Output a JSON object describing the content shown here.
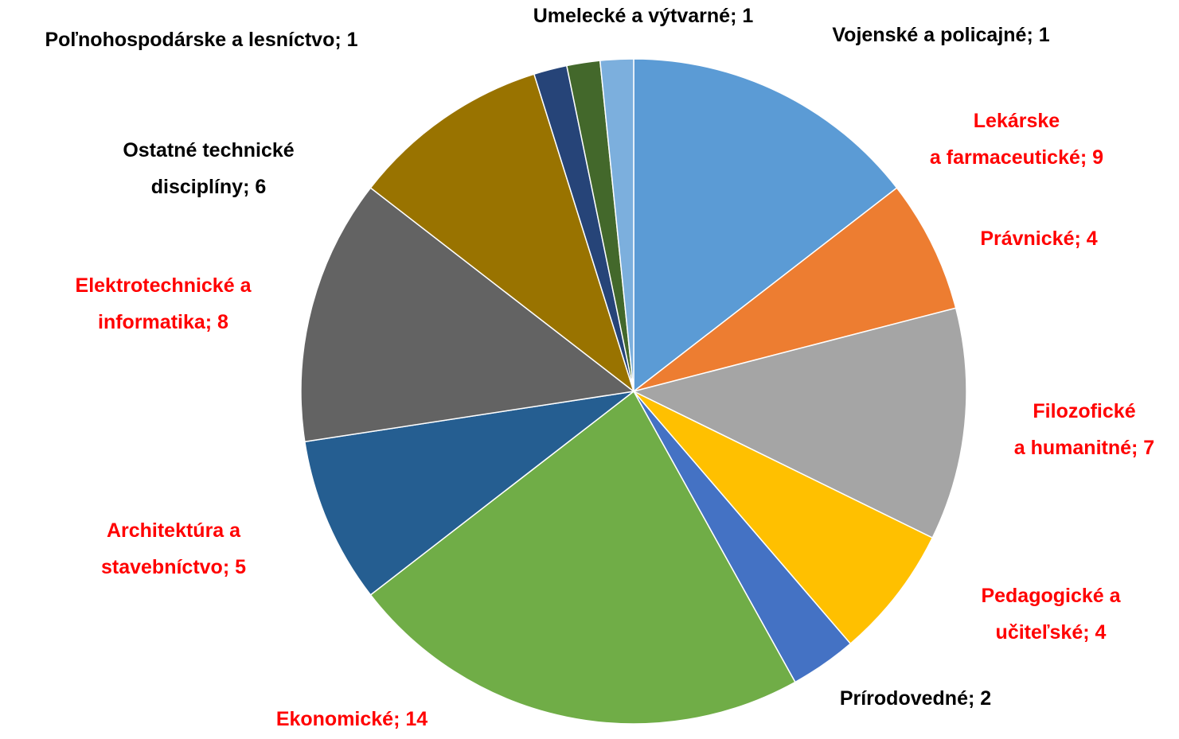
{
  "chart_data": {
    "type": "pie",
    "categories": [
      "Lekárske a farmaceutické",
      "Právnické",
      "Filozofické a humanitné",
      "Pedagogické a učiteľské",
      "Prírodovedné",
      "Ekonomické",
      "Architektúra a stavebníctvo",
      "Elektrotechnické a informatika",
      "Ostatné technické disciplíny",
      "Poľnohospodárske a lesníctvo",
      "Umelecké a výtvarné",
      "Vojenské a policajné"
    ],
    "values": [
      9,
      4,
      7,
      4,
      2,
      14,
      5,
      8,
      6,
      1,
      1,
      1
    ],
    "value_labels": [
      "; 9",
      "; 4",
      "; 7",
      "; 4",
      "; 2",
      "; 14",
      "; 5",
      "; 8",
      "; 6",
      "; 1",
      "; 1",
      "; 1"
    ],
    "colors": [
      "#5b9bd5",
      "#ed7d31",
      "#a5a5a5",
      "#ffc000",
      "#4472c4",
      "#70ad47",
      "#255e91",
      "#636363",
      "#997300",
      "#264478",
      "#43682b",
      "#7cafdd"
    ],
    "label_colors": [
      "#ff0000",
      "#ff0000",
      "#ff0000",
      "#ff0000",
      "#000000",
      "#ff0000",
      "#ff0000",
      "#ff0000",
      "#000000",
      "#000000",
      "#000000",
      "#000000"
    ]
  }
}
